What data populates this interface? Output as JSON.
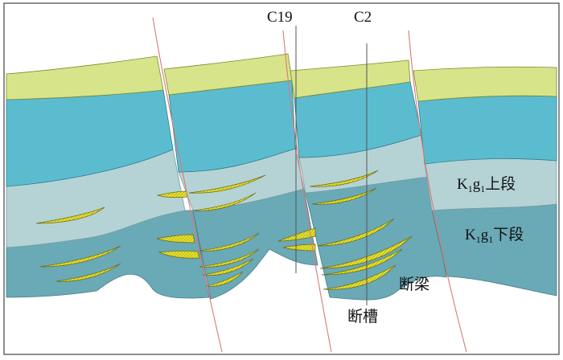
{
  "labels": {
    "well_c19": "C19",
    "well_c2": "C2",
    "upper_member": {
      "base": "K",
      "s1": "1",
      "mid": "g",
      "s2": "1",
      "suffix": "上段"
    },
    "lower_member": {
      "base": "K",
      "s1": "1",
      "mid": "g",
      "s2": "1",
      "suffix": "下段"
    },
    "horst": "断梁",
    "graben": "断槽"
  },
  "colors": {
    "top_layer": "#d8e48a",
    "cyan_layer": "#5bbccf",
    "pale_layer": "#b5d3d5",
    "lower_layer": "#6aa9b6",
    "sand_body": "#e6e02a",
    "fault_line": "#d97a7a",
    "well_line": "#555555",
    "frame": "#444444"
  }
}
